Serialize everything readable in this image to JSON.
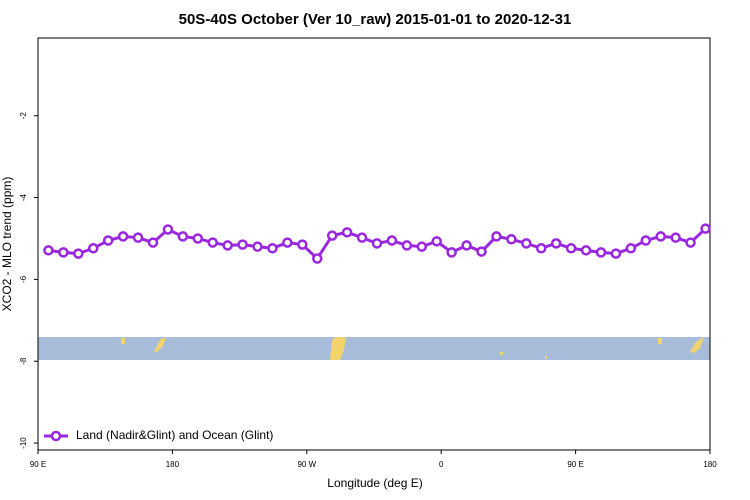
{
  "chart_data": {
    "type": "line",
    "title": "50S-40S October (Ver 10_raw)   2015-01-01 to 2020-12-31",
    "x_label": "Longitude (deg E)",
    "y_label": "XCO2 - MLO trend (ppm)",
    "xlim": [
      90,
      540
    ],
    "ylim": [
      -10.17,
      -0.1
    ],
    "xticks": [
      {
        "value": 90,
        "label": "90 E"
      },
      {
        "value": 180,
        "label": "180"
      },
      {
        "value": 270,
        "label": "90 W"
      },
      {
        "value": 360,
        "label": "0"
      },
      {
        "value": 450,
        "label": "90 E"
      },
      {
        "value": 540,
        "label": "180"
      }
    ],
    "yticks": [
      -2,
      -4,
      -6,
      -8,
      -10
    ],
    "legend_position": "lower left",
    "x": [
      97,
      107,
      117,
      127,
      137,
      147,
      157,
      167,
      177,
      187,
      197,
      207,
      217,
      227,
      237,
      247,
      257,
      267,
      277,
      287,
      297,
      307,
      317,
      327,
      337,
      347,
      357,
      367,
      377,
      387,
      397,
      407,
      417,
      427,
      437,
      447,
      457,
      467,
      477,
      487,
      497,
      507,
      517,
      527,
      537
    ],
    "series": [
      {
        "name": "Land (Nadir&Glint) and Ocean (Glint)",
        "color": "#9b26e0",
        "values": [
          -5.29,
          -5.34,
          -5.37,
          -5.24,
          -5.05,
          -4.95,
          -4.98,
          -5.1,
          -4.78,
          -4.95,
          -5.0,
          -5.1,
          -5.17,
          -5.15,
          -5.2,
          -5.24,
          -5.1,
          -5.15,
          -5.49,
          -4.93,
          -4.85,
          -4.98,
          -5.12,
          -5.05,
          -5.17,
          -5.2,
          -5.07,
          -5.34,
          -5.17,
          -5.32,
          -4.95,
          -5.02,
          -5.12,
          -5.24,
          -5.12,
          -5.24,
          -5.29,
          -5.34,
          -5.37,
          -5.24,
          -5.05,
          -4.95,
          -4.98,
          -5.1,
          -4.76
        ]
      }
    ]
  }
}
